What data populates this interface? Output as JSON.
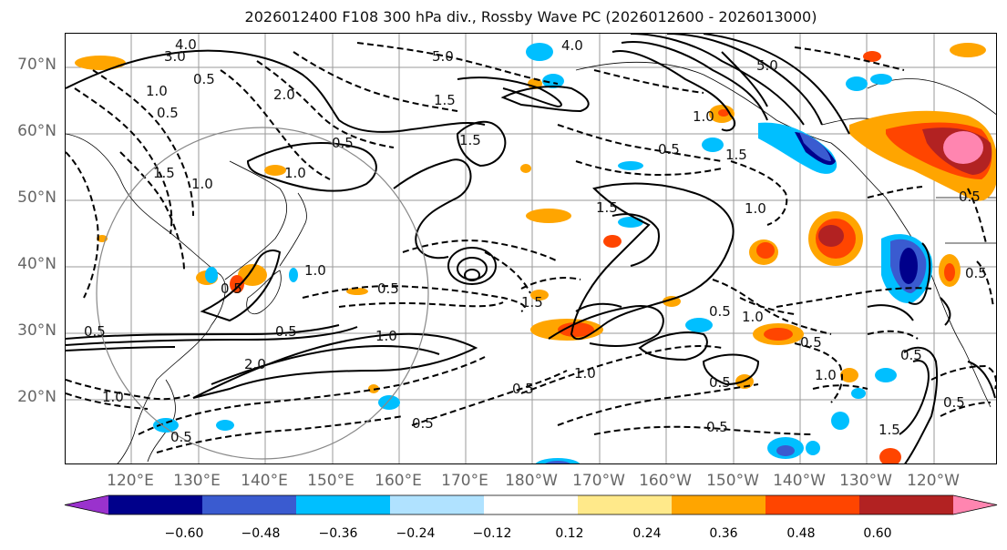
{
  "title": "2026012400 F108 300 hPa div., Rossby Wave PC (2026012600 - 2026013000)",
  "lat_labels": [
    "70°N",
    "60°N",
    "50°N",
    "40°N",
    "30°N",
    "20°N"
  ],
  "lon_labels": [
    "120°E",
    "130°E",
    "140°E",
    "150°E",
    "160°E",
    "170°E",
    "180°W",
    "170°W",
    "160°W",
    "150°W",
    "140°W",
    "130°W",
    "120°W"
  ],
  "colorbar": {
    "ticks": [
      "−0.60",
      "−0.48",
      "−0.36",
      "−0.24",
      "−0.12",
      "0.12",
      "0.24",
      "0.36",
      "0.48",
      "0.60"
    ],
    "colors": [
      "#9a32cd",
      "#00008b",
      "#3a5bd0",
      "#00bfff",
      "#b0e2ff",
      "#ffffff",
      "#ffe98a",
      "#ffa500",
      "#ff4500",
      "#b22222",
      "#ff85b0"
    ]
  },
  "contour_labels": [
    "4.0",
    "3.0",
    "0.5",
    "1.0",
    "5.0",
    "2.0",
    "1.5",
    "0.5",
    "4.0",
    "5.0",
    "1.5",
    "0.5",
    "1.0",
    "1.5",
    "1.0",
    "0.5",
    "1.0",
    "1.5",
    "1.0",
    "0.5",
    "0.5",
    "1.0",
    "0.5",
    "1.0",
    "2.0",
    "0.5",
    "0.5",
    "1.5",
    "0.5",
    "0.5",
    "1.0",
    "0.5",
    "1.0",
    "0.5",
    "1.5",
    "0.5",
    "0.5",
    "1.0",
    "0.5",
    "0.5",
    "1.0",
    "0.5",
    "1.5",
    "0.5"
  ]
}
